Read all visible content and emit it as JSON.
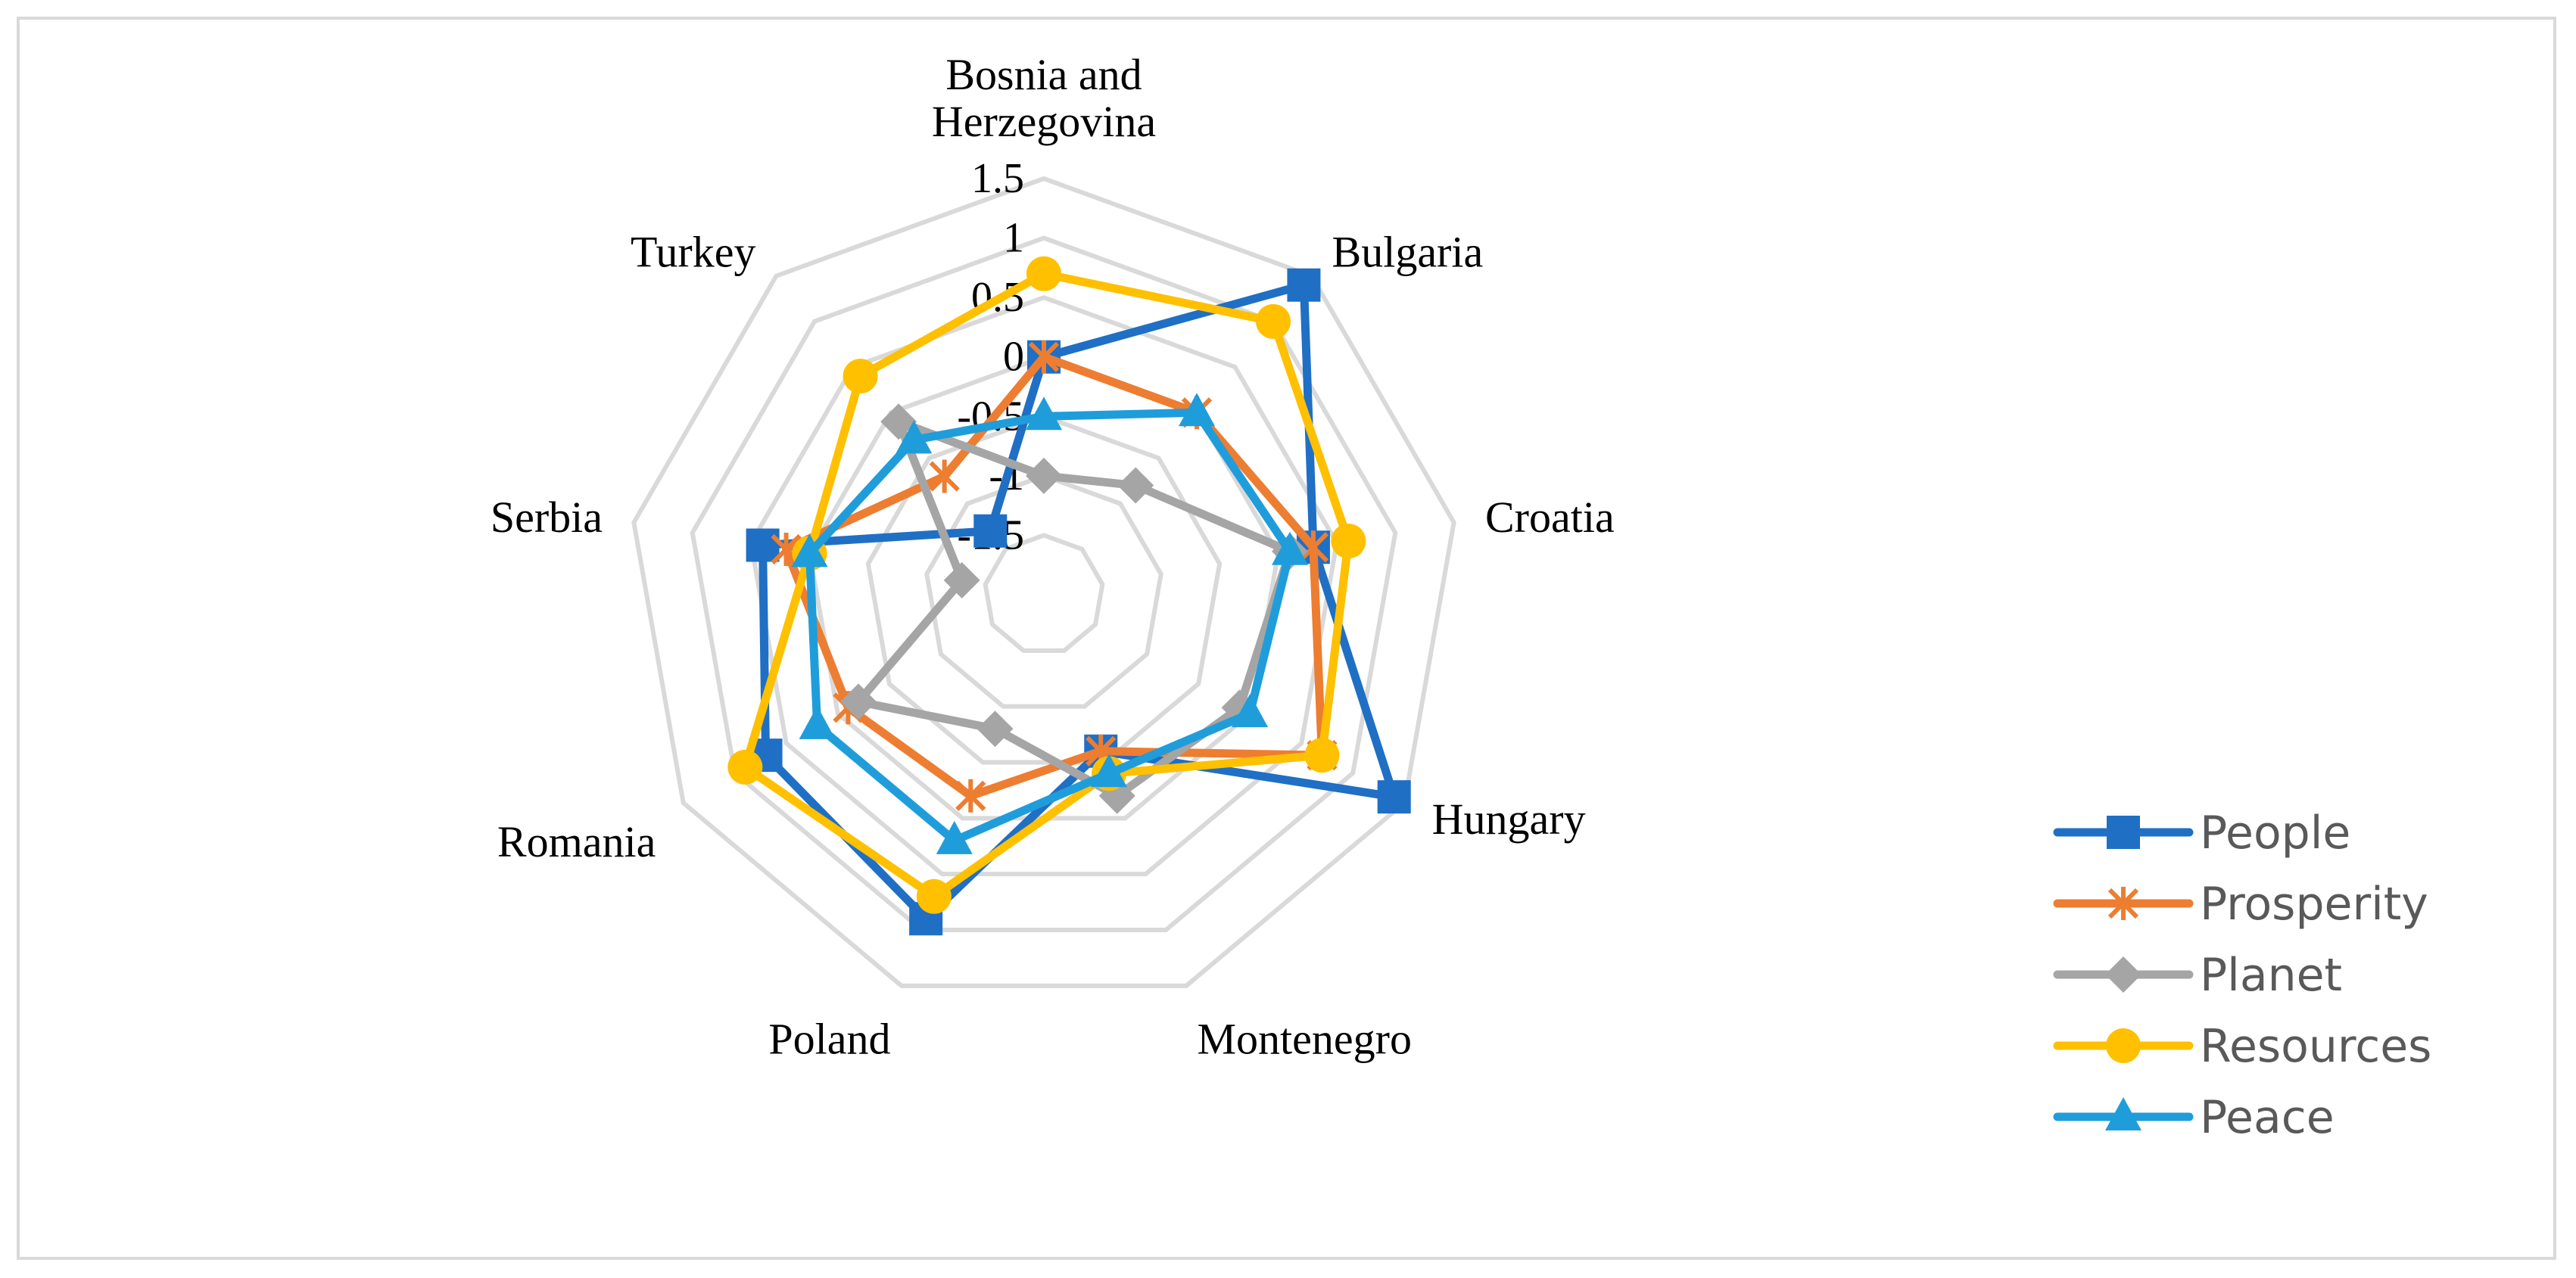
{
  "chart_data": {
    "type": "radar",
    "categories": [
      "Bosnia and Herzegovina",
      "Bulgaria",
      "Croatia",
      "Hungary",
      "Montenegro",
      "Poland",
      "Romania",
      "Serbia",
      "Turkey"
    ],
    "category_lines": [
      [
        "Bosnia and",
        "Herzegovina"
      ],
      [
        "Bulgaria"
      ],
      [
        "Croatia"
      ],
      [
        "Hungary"
      ],
      [
        "Montenegro"
      ],
      [
        "Poland"
      ],
      [
        "Romania"
      ],
      [
        "Serbia"
      ],
      [
        "Turkey"
      ]
    ],
    "rlim": [
      -2,
      1.5
    ],
    "ticks": [
      -1.5,
      -1,
      -0.5,
      0,
      0.5,
      1,
      1.5
    ],
    "tick_labels": [
      "-1.5",
      "-1",
      "-0.5",
      "0",
      "0.5",
      "1",
      "1.5"
    ],
    "grid": true,
    "legend_position": "bottom-right",
    "series": [
      {
        "name": "People",
        "color": "#1f6fc5",
        "marker": "square",
        "values": [
          0.0,
          1.4,
          0.3,
          1.4,
          -0.6,
          0.9,
          0.7,
          0.4,
          -1.3
        ]
      },
      {
        "name": "Prosperity",
        "color": "#ed7d31",
        "marker": "star",
        "values": [
          0.0,
          0.0,
          0.3,
          0.7,
          -0.6,
          -0.2,
          -0.1,
          0.2,
          -0.7
        ]
      },
      {
        "name": "Planet",
        "color": "#a5a5a5",
        "marker": "diamond",
        "values": [
          -1.0,
          -0.8,
          0.1,
          -0.1,
          -0.2,
          -0.8,
          -0.2,
          -1.3,
          -0.1
        ]
      },
      {
        "name": "Resources",
        "color": "#ffc000",
        "marker": "circle",
        "values": [
          0.7,
          1.0,
          0.6,
          0.7,
          -0.4,
          0.7,
          0.9,
          0.0,
          0.4
        ]
      },
      {
        "name": "Peace",
        "color": "#1f9ddb",
        "marker": "triangle",
        "values": [
          -0.5,
          0.0,
          0.1,
          0.0,
          -0.4,
          0.2,
          0.2,
          0.0,
          -0.3
        ]
      }
    ]
  }
}
